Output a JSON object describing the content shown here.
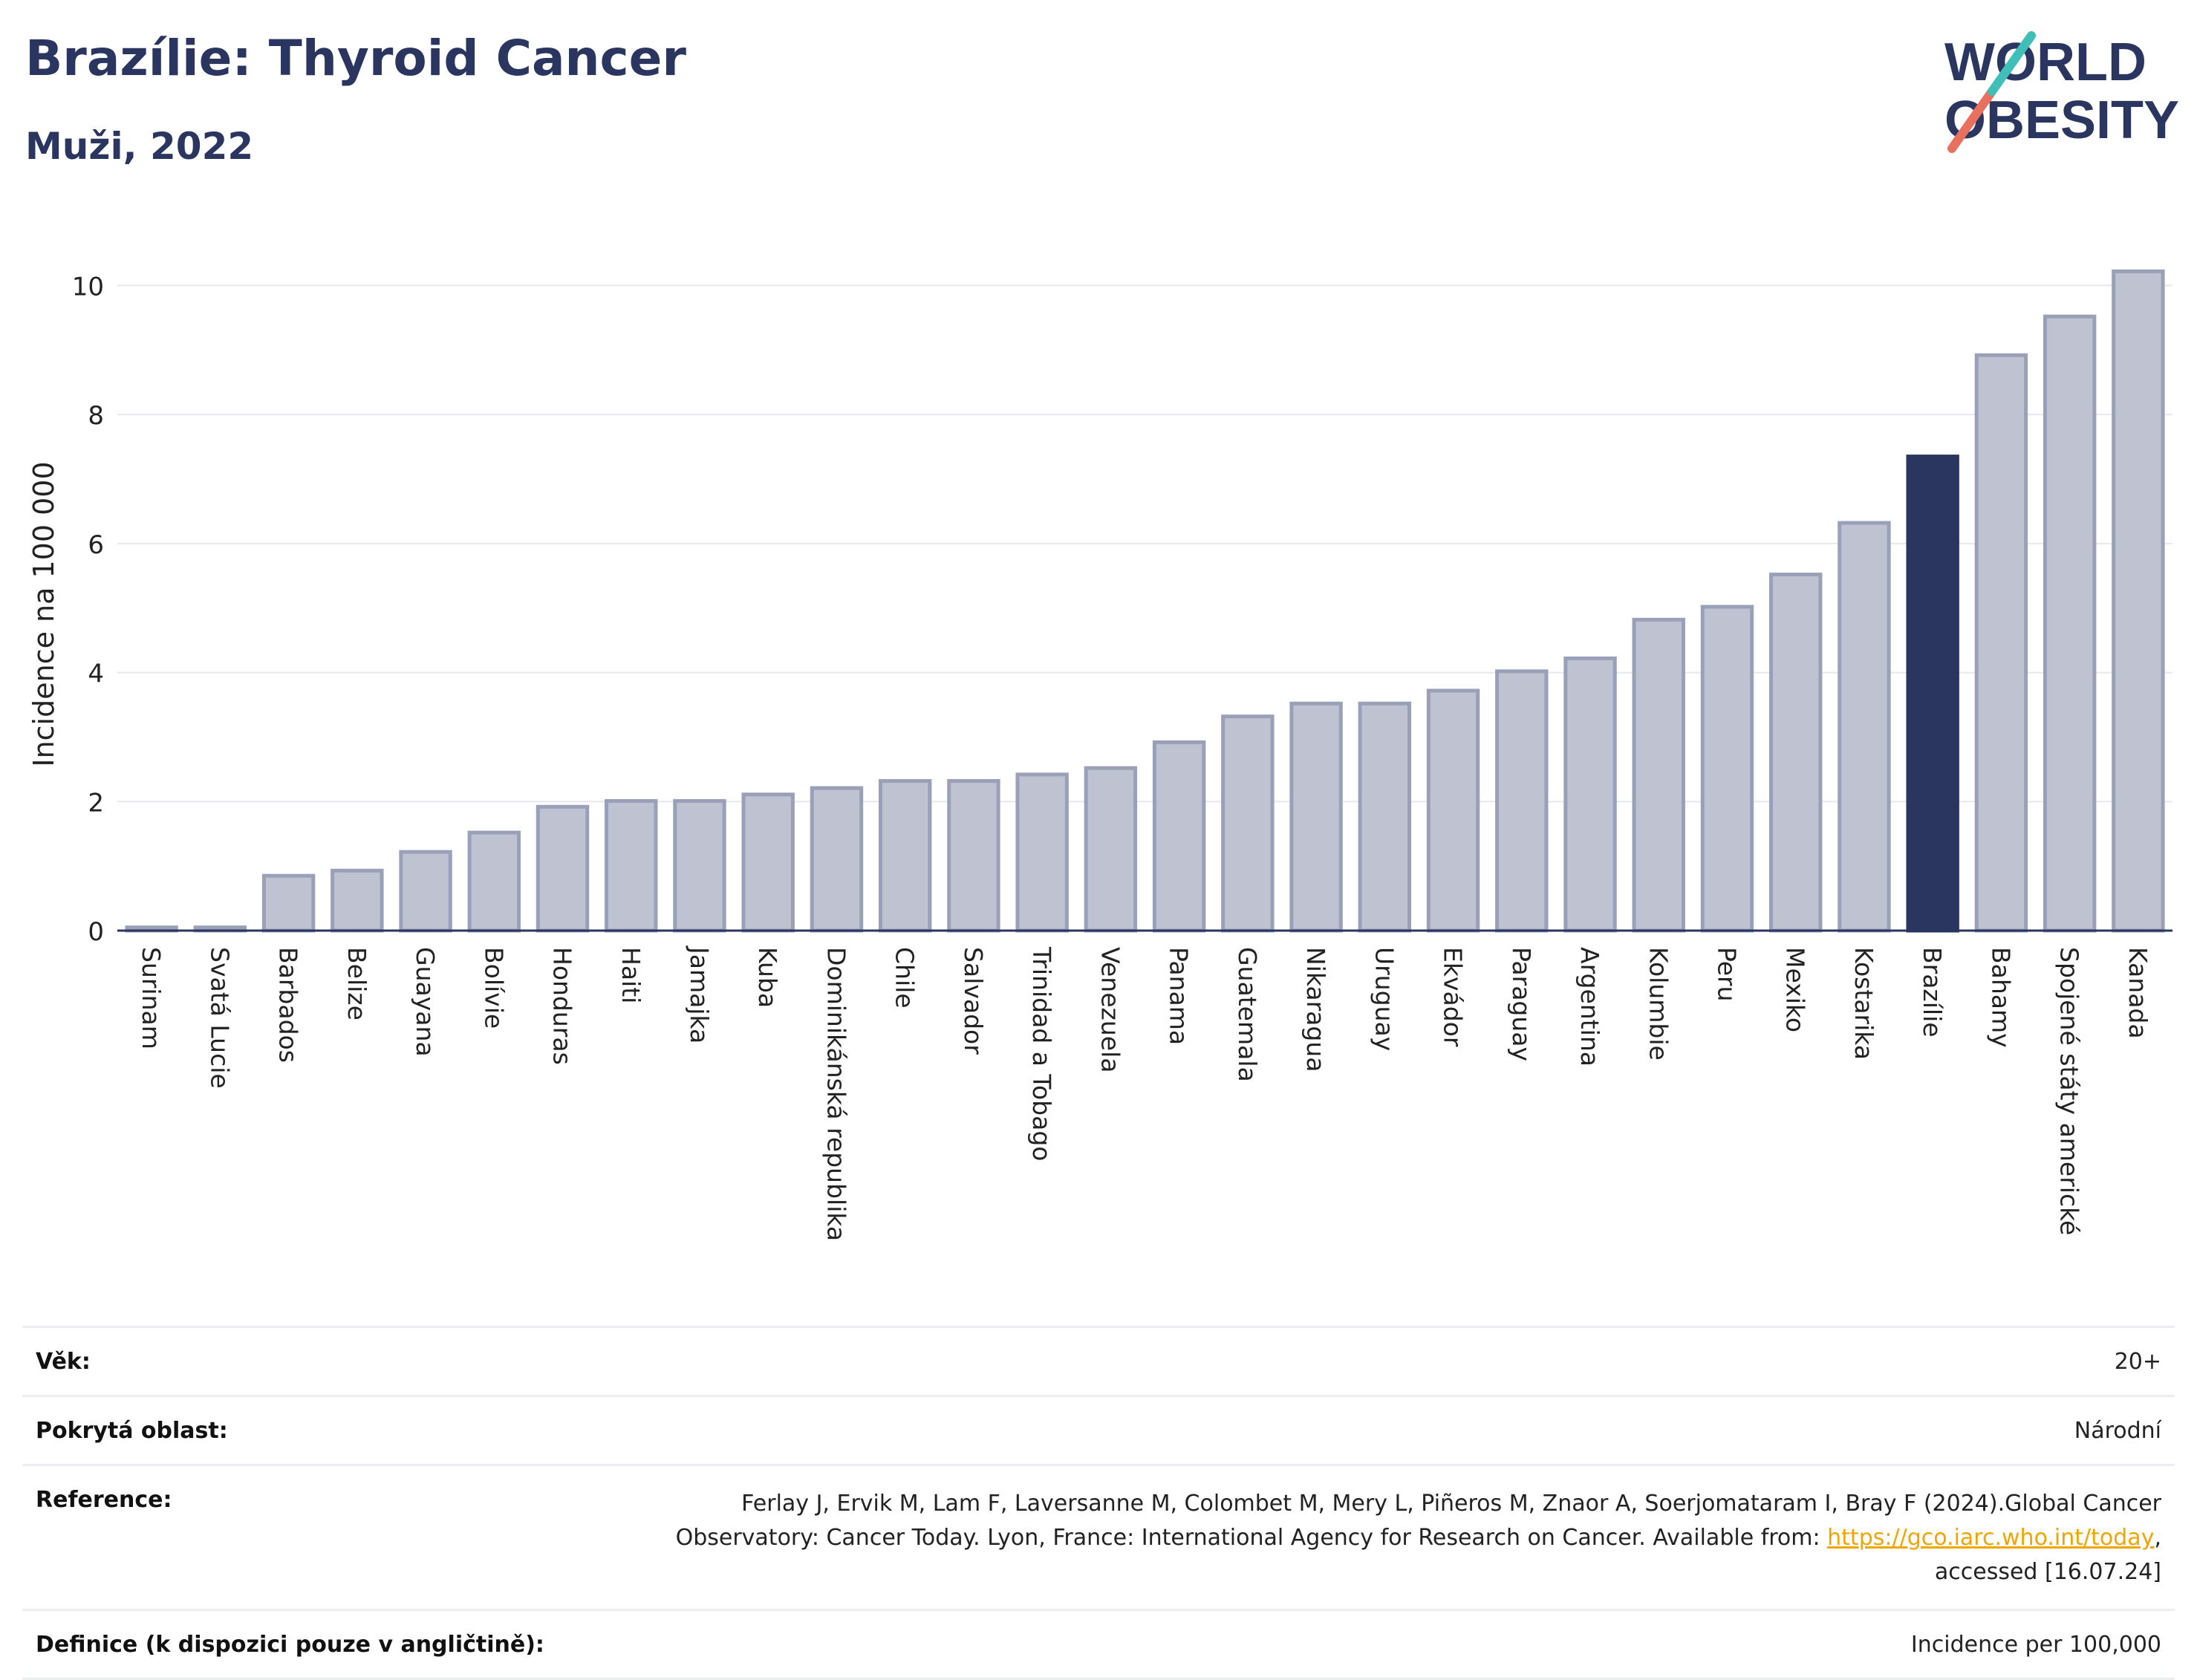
{
  "header": {
    "title": "Brazílie: Thyroid Cancer",
    "subtitle": "Muži, 2022",
    "logo_text": "WORLD OBESITY"
  },
  "chart_data": {
    "type": "bar",
    "ylabel": "Incidence na 100 000",
    "ylim": [
      0,
      10.5
    ],
    "yticks": [
      0,
      2,
      4,
      6,
      8,
      10
    ],
    "grid": true,
    "highlight": "Brazílie",
    "colors": {
      "bar": "#bfc3d1",
      "bar_edge": "#9aa0b8",
      "highlight": "#2b3660"
    },
    "categories": [
      "Surinam",
      "Svatá Lucie",
      "Barbados",
      "Belize",
      "Guayana",
      "Bolívie",
      "Honduras",
      "Haiti",
      "Jamajka",
      "Kuba",
      "Dominikánská republika",
      "Chile",
      "Salvador",
      "Trinidad a Tobago",
      "Venezuela",
      "Panama",
      "Guatemala",
      "Nikaragua",
      "Uruguay",
      "Ekvádor",
      "Paraguay",
      "Argentina",
      "Kolumbie",
      "Peru",
      "Mexiko",
      "Kostarika",
      "Brazílie",
      "Bahamy",
      "Spojené státy americké",
      "Kanada"
    ],
    "values": [
      0.05,
      0.05,
      0.85,
      0.93,
      1.22,
      1.52,
      1.92,
      2.01,
      2.01,
      2.11,
      2.21,
      2.32,
      2.32,
      2.42,
      2.52,
      2.92,
      3.32,
      3.52,
      3.52,
      3.72,
      4.02,
      4.22,
      4.82,
      5.02,
      5.52,
      6.32,
      7.35,
      8.92,
      9.52,
      10.22
    ]
  },
  "meta": {
    "age": {
      "label": "Věk:",
      "value": "20+"
    },
    "area": {
      "label": "Pokrytá oblast:",
      "value": "Národní"
    },
    "reference": {
      "label": "Reference:",
      "line1": "Ferlay J, Ervik M, Lam F, Laversanne M, Colombet M, Mery L, Piñeros M, Znaor A, Soerjomataram I, Bray F (2024).Global Cancer",
      "line2_pre": "Observatory: Cancer Today. Lyon, France: International Agency for Research on Cancer. Available from: ",
      "link": "https://gco.iarc.who.int/today",
      "line2_post": ",",
      "line3": "accessed [16.07.24]"
    },
    "definition": {
      "label": "Definice (k dispozici pouze v angličtině):",
      "value": "Incidence per 100,000"
    }
  }
}
